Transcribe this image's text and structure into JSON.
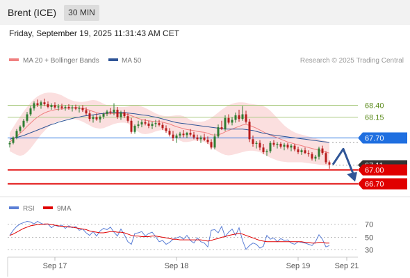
{
  "header": {
    "title": "Brent (ICE)",
    "timeframe": "30 MIN"
  },
  "datetime": "Friday, September 19, 2025 11:31:43 AM CET",
  "copyright": "Research © 2025 Trading Central",
  "colors": {
    "ma20": "#f08080",
    "ma50": "#2f5597",
    "bollinger_fill": "#fbdcdc",
    "candle_up": "#2e7d32",
    "candle_down": "#b71c1c",
    "support": "#e00000",
    "pivot": "#1f6fe0",
    "resistance_line": "#a8c97f",
    "resistance_text": "#5a8a1a",
    "current": "#333333",
    "arrow": "#2f5597",
    "rsi": "#5b7fd6",
    "rsi_ma": "#e00000"
  },
  "chart_data": [
    {
      "type": "candlestick",
      "legend": [
        {
          "label": "MA 20 + Bollinger Bands",
          "color": "#f08080"
        },
        {
          "label": "MA 50",
          "color": "#2f5597"
        }
      ],
      "ylim": [
        66.55,
        68.75
      ],
      "x_tick_labels": [
        "Sep 17",
        "Sep 18",
        "Sep 19",
        "Sep 21"
      ],
      "x_tick_index": [
        13,
        48,
        83,
        97
      ],
      "ohlc": [
        [
          67.55,
          67.62,
          67.48,
          67.58
        ],
        [
          67.58,
          67.72,
          67.55,
          67.7
        ],
        [
          67.7,
          67.88,
          67.66,
          67.84
        ],
        [
          67.84,
          67.96,
          67.8,
          67.93
        ],
        [
          67.93,
          68.1,
          67.9,
          68.06
        ],
        [
          68.06,
          68.25,
          68.02,
          68.2
        ],
        [
          68.2,
          68.38,
          68.16,
          68.33
        ],
        [
          68.33,
          68.48,
          68.28,
          68.44
        ],
        [
          68.44,
          68.52,
          68.36,
          68.4
        ],
        [
          68.4,
          68.5,
          68.32,
          68.46
        ],
        [
          68.46,
          68.54,
          68.38,
          68.42
        ],
        [
          68.42,
          68.48,
          68.33,
          68.36
        ],
        [
          68.36,
          68.44,
          68.3,
          68.4
        ],
        [
          68.4,
          68.46,
          68.32,
          68.35
        ],
        [
          68.35,
          68.42,
          68.28,
          68.37
        ],
        [
          68.37,
          68.43,
          68.3,
          68.34
        ],
        [
          68.34,
          68.4,
          68.28,
          68.36
        ],
        [
          68.36,
          68.42,
          68.3,
          68.33
        ],
        [
          68.33,
          68.4,
          68.26,
          68.35
        ],
        [
          68.35,
          68.41,
          68.29,
          68.32
        ],
        [
          68.32,
          68.38,
          68.24,
          68.34
        ],
        [
          68.34,
          68.4,
          68.25,
          68.29
        ],
        [
          68.29,
          68.35,
          68.18,
          68.22
        ],
        [
          68.22,
          68.28,
          68.05,
          68.1
        ],
        [
          68.1,
          68.18,
          68.02,
          68.14
        ],
        [
          68.14,
          68.22,
          68.06,
          68.09
        ],
        [
          68.09,
          68.18,
          68.02,
          68.15
        ],
        [
          68.15,
          68.24,
          68.1,
          68.21
        ],
        [
          68.21,
          68.3,
          68.16,
          68.26
        ],
        [
          68.26,
          68.34,
          68.2,
          68.24
        ],
        [
          68.24,
          68.44,
          68.18,
          68.3
        ],
        [
          68.3,
          68.36,
          68.1,
          68.14
        ],
        [
          68.14,
          68.28,
          68.08,
          68.24
        ],
        [
          68.24,
          68.3,
          68.12,
          68.16
        ],
        [
          68.16,
          68.22,
          68.02,
          68.06
        ],
        [
          68.06,
          68.12,
          67.78,
          67.82
        ],
        [
          67.82,
          67.98,
          67.78,
          67.95
        ],
        [
          67.95,
          68.06,
          67.9,
          67.98
        ],
        [
          67.98,
          68.08,
          67.92,
          68.03
        ],
        [
          68.03,
          68.1,
          67.96,
          68.0
        ],
        [
          68.0,
          68.06,
          67.9,
          67.95
        ],
        [
          67.95,
          68.04,
          67.88,
          67.99
        ],
        [
          67.99,
          68.08,
          67.92,
          68.01
        ],
        [
          68.01,
          68.08,
          67.94,
          67.97
        ],
        [
          67.97,
          68.02,
          67.86,
          67.9
        ],
        [
          67.9,
          67.96,
          67.8,
          67.84
        ],
        [
          67.84,
          67.9,
          67.72,
          67.76
        ],
        [
          67.76,
          67.84,
          67.62,
          67.68
        ],
        [
          67.68,
          67.78,
          67.58,
          67.74
        ],
        [
          67.74,
          67.82,
          67.68,
          67.78
        ],
        [
          67.78,
          67.86,
          67.7,
          67.75
        ],
        [
          67.75,
          67.82,
          67.68,
          67.8
        ],
        [
          67.8,
          67.88,
          67.72,
          67.76
        ],
        [
          67.76,
          67.82,
          67.66,
          67.7
        ],
        [
          67.7,
          67.76,
          67.62,
          67.66
        ],
        [
          67.66,
          67.74,
          67.58,
          67.7
        ],
        [
          67.7,
          67.78,
          67.62,
          67.65
        ],
        [
          67.65,
          67.72,
          67.56,
          67.6
        ],
        [
          67.6,
          67.66,
          67.44,
          67.48
        ],
        [
          67.48,
          67.78,
          67.44,
          67.72
        ],
        [
          67.72,
          67.98,
          67.68,
          67.92
        ],
        [
          67.92,
          68.06,
          67.86,
          67.88
        ],
        [
          67.88,
          68.18,
          67.84,
          68.12
        ],
        [
          68.12,
          68.2,
          67.98,
          68.02
        ],
        [
          68.02,
          68.14,
          67.96,
          68.08
        ],
        [
          68.08,
          68.24,
          68.02,
          68.18
        ],
        [
          68.18,
          68.3,
          68.04,
          68.1
        ],
        [
          68.1,
          68.38,
          68.06,
          68.2
        ],
        [
          68.2,
          68.28,
          68.0,
          68.04
        ],
        [
          68.04,
          68.1,
          67.6,
          67.66
        ],
        [
          67.66,
          67.74,
          67.5,
          67.56
        ],
        [
          67.56,
          67.62,
          67.46,
          67.58
        ],
        [
          67.58,
          67.64,
          67.42,
          67.48
        ],
        [
          67.48,
          67.56,
          67.34,
          67.38
        ],
        [
          67.38,
          67.44,
          67.3,
          67.4
        ],
        [
          67.4,
          67.62,
          67.36,
          67.58
        ],
        [
          67.58,
          67.64,
          67.5,
          67.54
        ],
        [
          67.54,
          67.6,
          67.46,
          67.56
        ],
        [
          67.56,
          67.6,
          67.46,
          67.5
        ],
        [
          67.5,
          67.58,
          67.42,
          67.54
        ],
        [
          67.54,
          67.58,
          67.44,
          67.48
        ],
        [
          67.48,
          67.56,
          67.4,
          67.52
        ],
        [
          67.52,
          67.56,
          67.4,
          67.44
        ],
        [
          67.44,
          67.5,
          67.34,
          67.38
        ],
        [
          67.38,
          67.46,
          67.32,
          67.42
        ],
        [
          67.42,
          67.48,
          67.34,
          67.36
        ],
        [
          67.36,
          67.42,
          67.28,
          67.34
        ],
        [
          67.34,
          67.38,
          67.2,
          67.24
        ],
        [
          67.24,
          67.32,
          67.18,
          67.28
        ],
        [
          67.28,
          67.5,
          67.22,
          67.46
        ],
        [
          67.46,
          67.52,
          67.32,
          67.36
        ],
        [
          67.36,
          67.4,
          67.12,
          67.16
        ],
        [
          67.16,
          67.2,
          67.02,
          67.11
        ]
      ],
      "ma20": [
        67.6,
        67.66,
        67.72,
        67.79,
        67.86,
        67.94,
        68.01,
        68.08,
        68.14,
        68.19,
        68.23,
        68.26,
        68.28,
        68.3,
        68.31,
        68.32,
        68.33,
        68.34,
        68.34,
        68.35,
        68.34,
        68.33,
        68.31,
        68.29,
        68.26,
        68.24,
        68.22,
        68.21,
        68.21,
        68.21,
        68.22,
        68.22,
        68.22,
        68.21,
        68.2,
        68.17,
        68.14,
        68.11,
        68.09,
        68.07,
        68.06,
        68.05,
        68.04,
        68.04,
        68.03,
        68.01,
        67.99,
        67.96,
        67.93,
        67.91,
        67.89,
        67.87,
        67.86,
        67.85,
        67.83,
        67.82,
        67.81,
        67.79,
        67.76,
        67.75,
        67.76,
        67.78,
        67.82,
        67.85,
        67.88,
        67.91,
        67.94,
        67.97,
        67.98,
        67.96,
        67.93,
        67.9,
        67.86,
        67.82,
        67.78,
        67.75,
        67.72,
        67.69,
        67.66,
        67.63,
        67.6,
        67.58,
        67.56,
        67.54,
        67.52,
        67.5,
        67.48,
        67.46,
        67.44,
        67.42,
        67.4,
        67.38,
        67.36
      ],
      "bb_upper": [
        67.8,
        67.92,
        68.04,
        68.15,
        68.26,
        68.36,
        68.45,
        68.53,
        68.59,
        68.63,
        68.66,
        68.67,
        68.67,
        68.66,
        68.64,
        68.61,
        68.57,
        68.53,
        68.5,
        68.48,
        68.47,
        68.47,
        68.48,
        68.5,
        68.51,
        68.5,
        68.47,
        68.43,
        68.4,
        68.38,
        68.37,
        68.36,
        68.36,
        68.36,
        68.37,
        68.39,
        68.4,
        68.39,
        68.37,
        68.34,
        68.3,
        68.26,
        68.22,
        68.19,
        68.17,
        68.16,
        68.16,
        68.17,
        68.18,
        68.18,
        68.16,
        68.12,
        68.08,
        68.05,
        68.04,
        68.04,
        68.05,
        68.08,
        68.12,
        68.18,
        68.24,
        68.3,
        68.35,
        68.4,
        68.43,
        68.45,
        68.46,
        68.46,
        68.45,
        68.43,
        68.42,
        68.41,
        68.4,
        68.38,
        68.34,
        68.28,
        68.2,
        68.12,
        68.04,
        67.96,
        67.9,
        67.85,
        67.81,
        67.78,
        67.76,
        67.74,
        67.72,
        67.7,
        67.68,
        67.66,
        67.64,
        67.62,
        67.6
      ],
      "bb_lower": [
        67.4,
        67.36,
        67.32,
        67.3,
        67.32,
        67.38,
        67.46,
        67.56,
        67.66,
        67.76,
        67.84,
        67.92,
        67.98,
        68.02,
        68.05,
        68.07,
        68.09,
        68.1,
        68.1,
        68.09,
        68.07,
        68.04,
        68.0,
        67.96,
        67.92,
        67.9,
        67.89,
        67.9,
        67.93,
        67.96,
        67.99,
        68.01,
        68.02,
        68.02,
        68.0,
        67.95,
        67.88,
        67.82,
        67.78,
        67.77,
        67.78,
        67.8,
        67.83,
        67.85,
        67.86,
        67.84,
        67.8,
        67.74,
        67.68,
        67.63,
        67.6,
        67.6,
        67.61,
        67.63,
        67.63,
        67.62,
        67.6,
        67.56,
        67.5,
        67.44,
        67.39,
        67.35,
        67.32,
        67.31,
        67.32,
        67.34,
        67.36,
        67.38,
        67.4,
        67.41,
        67.41,
        67.4,
        67.38,
        67.34,
        67.3,
        67.26,
        67.23,
        67.2,
        67.18,
        67.17,
        67.16,
        67.16,
        67.16,
        67.16,
        67.16,
        67.15,
        67.14,
        67.13,
        67.12,
        67.11,
        67.1,
        67.09,
        67.08
      ],
      "ma50": [
        67.66,
        67.68,
        67.7,
        67.72,
        67.74,
        67.77,
        67.8,
        67.83,
        67.86,
        67.89,
        67.92,
        67.95,
        67.98,
        68.0,
        68.03,
        68.05,
        68.07,
        68.09,
        68.11,
        68.13,
        68.14,
        68.16,
        68.17,
        68.18,
        68.19,
        68.2,
        68.21,
        68.22,
        68.23,
        68.24,
        68.24,
        68.24,
        68.24,
        68.24,
        68.23,
        68.22,
        68.21,
        68.2,
        68.19,
        68.18,
        68.17,
        68.15,
        68.14,
        68.12,
        68.1,
        68.08,
        68.06,
        68.04,
        68.02,
        68.01,
        68.0,
        67.99,
        67.98,
        67.97,
        67.96,
        67.95,
        67.94,
        67.93,
        67.92,
        67.91,
        67.9,
        67.89,
        67.88,
        67.88,
        67.88,
        67.88,
        67.88,
        67.88,
        67.87,
        67.86,
        67.85,
        67.83,
        67.81,
        67.79,
        67.78,
        67.76,
        67.75,
        67.74,
        67.73,
        67.72,
        67.71,
        67.7,
        67.69,
        67.68,
        67.67,
        67.66,
        67.65,
        67.64,
        67.63,
        67.62,
        67.61,
        67.6,
        67.59
      ],
      "levels": [
        {
          "value": 68.4,
          "label": "68.40",
          "kind": "resistance"
        },
        {
          "value": 68.15,
          "label": "68.15",
          "kind": "resistance"
        },
        {
          "value": 67.7,
          "label": "67.70",
          "kind": "pivot"
        },
        {
          "value": 67.11,
          "label": "67.11",
          "kind": "current"
        },
        {
          "value": 67.0,
          "label": "67.00",
          "kind": "support"
        },
        {
          "value": 66.7,
          "label": "66.70",
          "kind": "support"
        }
      ],
      "forecast_path": [
        67.11,
        67.45,
        66.8
      ]
    },
    {
      "type": "line",
      "legend": [
        {
          "label": "RSI",
          "color": "#5b7fd6"
        },
        {
          "label": "9MA",
          "color": "#e00000"
        }
      ],
      "ylim": [
        20,
        80
      ],
      "y_ticks": [
        70,
        50,
        30
      ],
      "y_tick_labels": [
        "70",
        "50",
        "30"
      ],
      "rsi": [
        52,
        60,
        66,
        70,
        72,
        74,
        73,
        70,
        74,
        71,
        69,
        70,
        64,
        68,
        66,
        68,
        63,
        67,
        64,
        66,
        60,
        62,
        56,
        52,
        58,
        51,
        59,
        63,
        61,
        65,
        57,
        51,
        62,
        53,
        42,
        38,
        55,
        56,
        58,
        51,
        55,
        57,
        50,
        42,
        44,
        38,
        41,
        46,
        48,
        50,
        46,
        52,
        44,
        40,
        48,
        42,
        40,
        34,
        60,
        61,
        56,
        66,
        50,
        57,
        62,
        52,
        64,
        44,
        30,
        36,
        40,
        38,
        32,
        35,
        52,
        46,
        48,
        42,
        47,
        44,
        45,
        40,
        38,
        42,
        41,
        40,
        38,
        36,
        42,
        53,
        46,
        34,
        36
      ],
      "rsi_ma": [
        52,
        54,
        57,
        60,
        63,
        65,
        67,
        68,
        69,
        69,
        70,
        70,
        69,
        68,
        67,
        66,
        66,
        65,
        65,
        64,
        63,
        62,
        61,
        59,
        58,
        57,
        56,
        56,
        57,
        58,
        58,
        57,
        57,
        56,
        54,
        52,
        51,
        51,
        50,
        50,
        50,
        51,
        51,
        50,
        49,
        48,
        47,
        46,
        46,
        45,
        45,
        45,
        45,
        45,
        45,
        45,
        44,
        43,
        44,
        46,
        47,
        49,
        50,
        52,
        53,
        54,
        55,
        54,
        52,
        50,
        48,
        46,
        44,
        43,
        42,
        42,
        42,
        42,
        42,
        42,
        42,
        42,
        42,
        42,
        42,
        41,
        41,
        40,
        40,
        41,
        41,
        40,
        40
      ]
    }
  ]
}
